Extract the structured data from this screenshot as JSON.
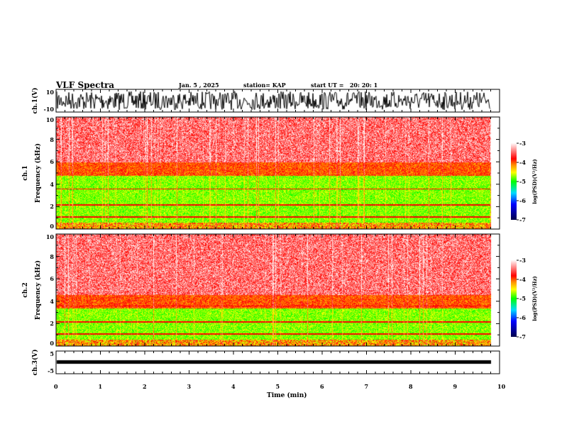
{
  "header": {
    "title": "VLF Spectra",
    "date": "Jan. 5 , 2025",
    "station": "station= KAP",
    "start": "start UT =   20: 20: 1"
  },
  "chart_data": [
    {
      "type": "line",
      "name": "ch1",
      "ylabel": "ch.1(V)",
      "ylim": [
        -10,
        10
      ],
      "yticks": [
        "10",
        "-10"
      ],
      "xlim": [
        0,
        10
      ],
      "data_end_min": 9.8
    },
    {
      "type": "heatmap",
      "name": "ch1-spectrogram",
      "ylabel": "ch.1\nFrequency (kHz)",
      "ylim": [
        0,
        10
      ],
      "yticks": [
        "0",
        "2",
        "4",
        "6",
        "8",
        "10"
      ],
      "xlim": [
        0,
        10
      ],
      "colorbar": {
        "label": "log(PSD)(V²/Hz)",
        "range": [
          -7,
          -3
        ],
        "ticks": [
          "-3",
          "-4",
          "-5",
          "-6",
          "-7"
        ]
      }
    },
    {
      "type": "heatmap",
      "name": "ch2-spectrogram",
      "ylabel": "ch.2\nFrequency (kHz)",
      "ylim": [
        0,
        10
      ],
      "yticks": [
        "0",
        "2",
        "4",
        "6",
        "8",
        "10"
      ],
      "xlim": [
        0,
        10
      ],
      "colorbar": {
        "label": "log(PSD)(V²/Hz)",
        "range": [
          -7,
          -3
        ],
        "ticks": [
          "-3",
          "-4",
          "-5",
          "-6",
          "-7"
        ]
      }
    },
    {
      "type": "line",
      "name": "ch3",
      "ylabel": "ch.3(V)",
      "ylim": [
        -5,
        5
      ],
      "yticks": [
        "5",
        "-5"
      ],
      "xlim": [
        0,
        10
      ],
      "approx_value": -1.8
    }
  ],
  "xaxis": {
    "label": "Time (min)",
    "ticks": [
      "0",
      "1",
      "2",
      "3",
      "4",
      "5",
      "6",
      "7",
      "8",
      "9",
      "10"
    ]
  },
  "ylabels": {
    "ch1": "ch.1(V)",
    "spec1a": "ch.1",
    "spec1b": "Frequency (kHz)",
    "spec2a": "ch.2",
    "spec2b": "Frequency (kHz)",
    "ch3": "ch.3(V)"
  }
}
